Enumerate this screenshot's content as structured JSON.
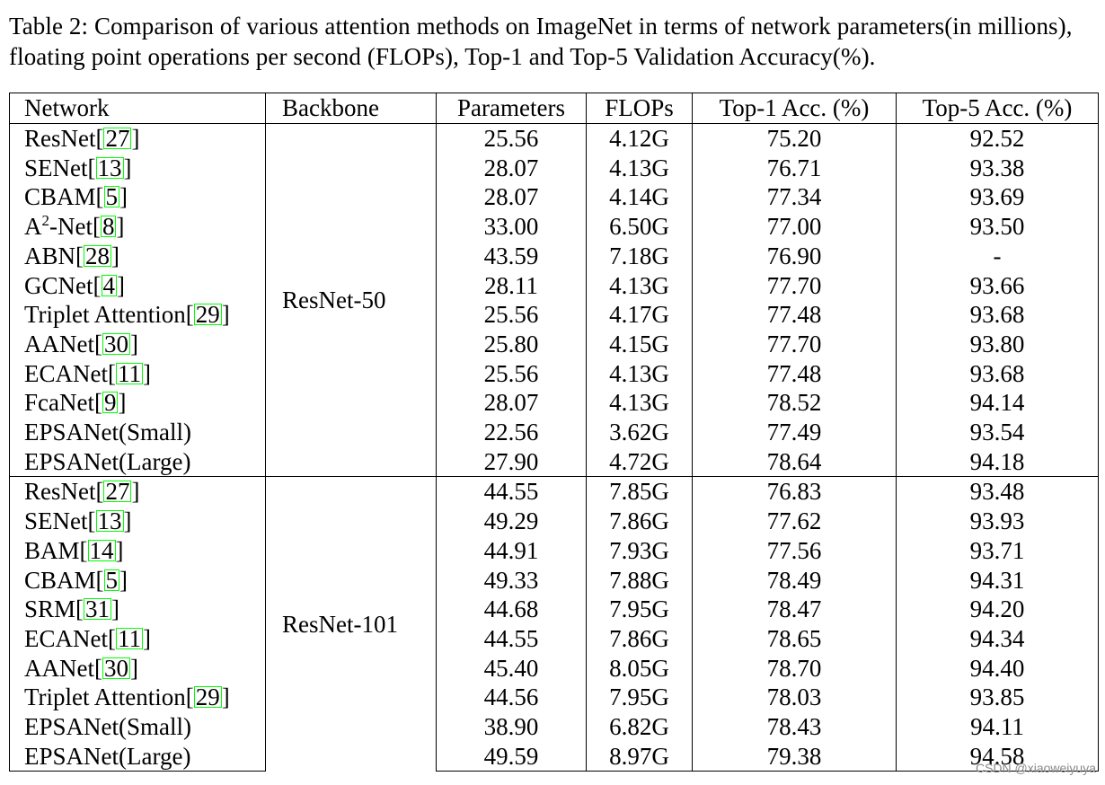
{
  "caption": "Table 2:  Comparison of various attention methods on ImageNet in terms of network parameters(in millions), floating point operations per second (FLOPs), Top-1 and Top-5 Validation Accuracy(%).",
  "table": {
    "headers": [
      "Network",
      "Backbone",
      "Parameters",
      "FLOPs",
      "Top-1 Acc. (%)",
      "Top-5 Acc. (%)"
    ],
    "groups": [
      {
        "backbone": "ResNet-50",
        "rows": [
          {
            "name": "ResNet",
            "ref": "27",
            "params": "25.56",
            "flops": "4.12G",
            "top1": "75.20",
            "top5": "92.52"
          },
          {
            "name": "SENet",
            "ref": "13",
            "params": "28.07",
            "flops": "4.13G",
            "top1": "76.71",
            "top5": "93.38"
          },
          {
            "name": "CBAM",
            "ref": "5",
            "params": "28.07",
            "flops": "4.14G",
            "top1": "77.34",
            "top5": "93.69"
          },
          {
            "name": "A",
            "sup": "2",
            "name_rest": "-Net",
            "ref": "8",
            "params": "33.00",
            "flops": "6.50G",
            "top1": "77.00",
            "top5": "93.50"
          },
          {
            "name": "ABN",
            "ref": "28",
            "params": "43.59",
            "flops": "7.18G",
            "top1": "76.90",
            "top5": "-"
          },
          {
            "name": "GCNet",
            "ref": "4",
            "params": "28.11",
            "flops": "4.13G",
            "top1": "77.70",
            "top5": "93.66"
          },
          {
            "name": "Triplet Attention",
            "ref": "29",
            "params": "25.56",
            "flops": "4.17G",
            "top1": "77.48",
            "top5": "93.68"
          },
          {
            "name": "AANet",
            "ref": "30",
            "params": "25.80",
            "flops": "4.15G",
            "top1": "77.70",
            "top5": "93.80"
          },
          {
            "name": "ECANet",
            "ref": "11",
            "params": "25.56",
            "flops": "4.13G",
            "top1": "77.48",
            "top5": "93.68"
          },
          {
            "name": "FcaNet",
            "ref": "9",
            "params": "28.07",
            "flops": "4.13G",
            "top1": "78.52",
            "top5": "94.14"
          },
          {
            "name": "EPSANet(Small)",
            "params": "22.56",
            "flops": "3.62G",
            "top1": "77.49",
            "top5": "93.54",
            "bold": [
              "params",
              "flops"
            ]
          },
          {
            "name": "EPSANet(Large)",
            "params": "27.90",
            "flops": "4.72G",
            "top1": "78.64",
            "top5": "94.18",
            "bold": [
              "top1",
              "top5"
            ]
          }
        ]
      },
      {
        "backbone": "ResNet-101",
        "rows": [
          {
            "name": "ResNet",
            "ref": "27",
            "params": "44.55",
            "flops": "7.85G",
            "top1": "76.83",
            "top5": "93.48"
          },
          {
            "name": "SENet",
            "ref": "13",
            "params": "49.29",
            "flops": "7.86G",
            "top1": "77.62",
            "top5": "93.93"
          },
          {
            "name": "BAM",
            "ref": "14",
            "params": "44.91",
            "flops": "7.93G",
            "top1": "77.56",
            "top5": "93.71"
          },
          {
            "name": "CBAM",
            "ref": "5",
            "params": "49.33",
            "flops": "7.88G",
            "top1": "78.49",
            "top5": "94.31"
          },
          {
            "name": "SRM",
            "ref": "31",
            "params": "44.68",
            "flops": "7.95G",
            "top1": "78.47",
            "top5": "94.20"
          },
          {
            "name": "ECANet",
            "ref": "11",
            "params": "44.55",
            "flops": "7.86G",
            "top1": "78.65",
            "top5": "94.34"
          },
          {
            "name": "AANet",
            "ref": "30",
            "params": "45.40",
            "flops": "8.05G",
            "top1": "78.70",
            "top5": "94.40"
          },
          {
            "name": "Triplet Attention",
            "ref": "29",
            "params": "44.56",
            "flops": "7.95G",
            "top1": "78.03",
            "top5": "93.85"
          },
          {
            "name": "EPSANet(Small)",
            "params": "38.90",
            "flops": "6.82G",
            "top1": "78.43",
            "top5": "94.11",
            "bold": [
              "params",
              "flops"
            ]
          },
          {
            "name": "EPSANet(Large)",
            "params": "49.59",
            "flops": "8.97G",
            "top1": "79.38",
            "top5": "94.58",
            "bold": [
              "top1",
              "top5"
            ]
          }
        ]
      }
    ]
  },
  "watermark": "CSDN @xiaoweiyuya",
  "colors": {
    "ref_box": "#00ff00",
    "watermark": "#8a8a8a"
  }
}
